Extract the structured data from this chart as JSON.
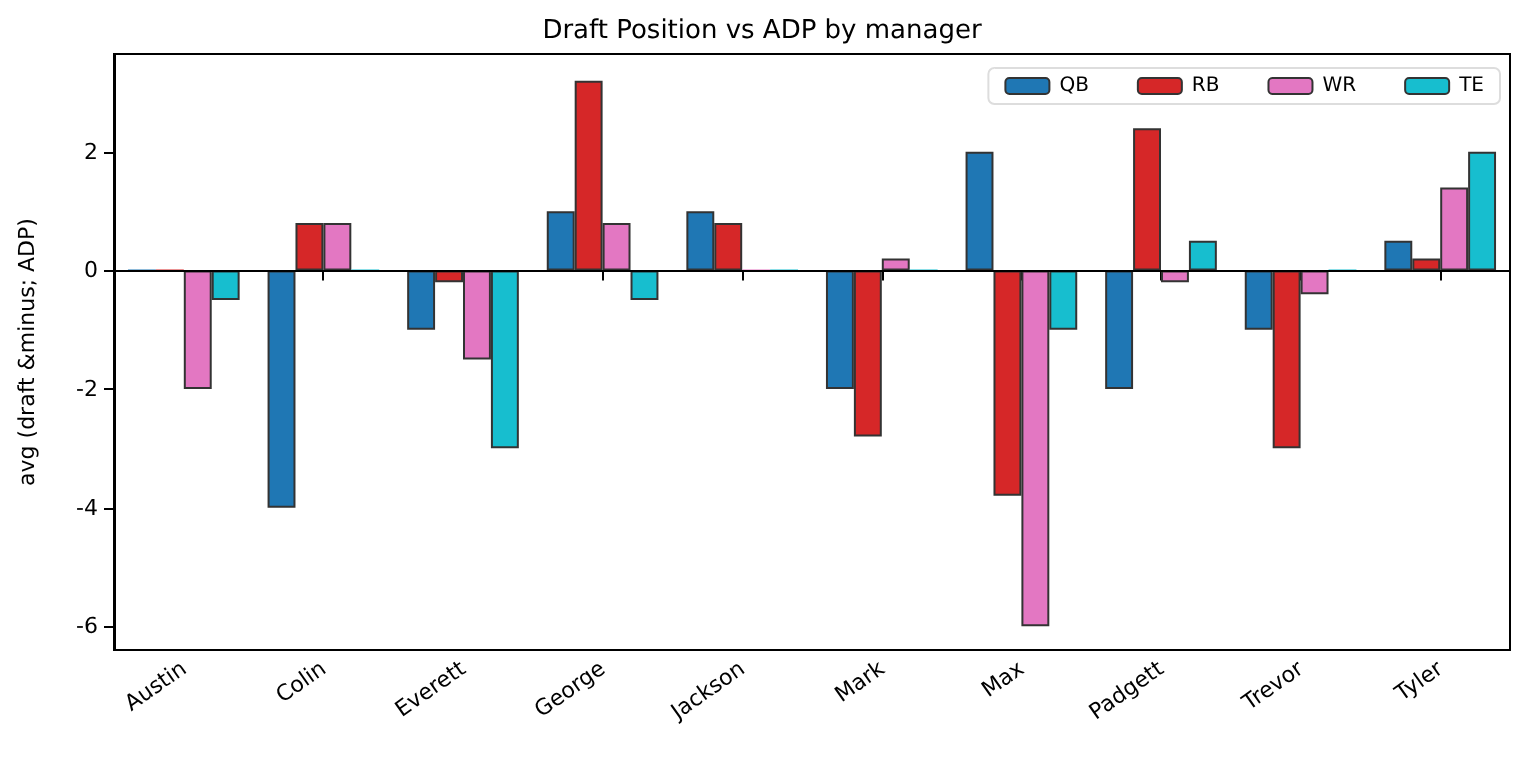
{
  "chart_data": {
    "type": "bar",
    "title": "Draft Position vs ADP by manager",
    "ylabel": "avg (draft &minus; ADP)",
    "categories": [
      "Austin",
      "Colin",
      "Everett",
      "George",
      "Jackson",
      "Mark",
      "Max",
      "Padgett",
      "Trevor",
      "Tyler"
    ],
    "series": [
      {
        "name": "QB",
        "color": "#1f77b4",
        "values": [
          0,
          -4,
          -1,
          1,
          1,
          -2,
          2,
          -2,
          -1,
          0.5
        ]
      },
      {
        "name": "RB",
        "color": "#d62728",
        "values": [
          0,
          0.8,
          -0.2,
          3.2,
          0.8,
          -2.8,
          -3.8,
          2.4,
          -3,
          0.2
        ]
      },
      {
        "name": "WR",
        "color": "#e377c2",
        "values": [
          -2,
          0.8,
          -1.5,
          0.8,
          0,
          0.2,
          -6,
          -0.2,
          -0.4,
          1.4
        ]
      },
      {
        "name": "TE",
        "color": "#17becf",
        "values": [
          -0.5,
          0,
          -3,
          -0.5,
          0,
          0,
          -1,
          0.5,
          0,
          2
        ]
      }
    ],
    "ylim": [
      -6.4,
      3.65
    ],
    "yticks": [
      -6,
      -4,
      -2,
      0,
      2
    ],
    "grid": false,
    "legend": "top right",
    "ref_lines": [
      {
        "axis": "y",
        "value": 0,
        "color": "#000000"
      }
    ]
  }
}
